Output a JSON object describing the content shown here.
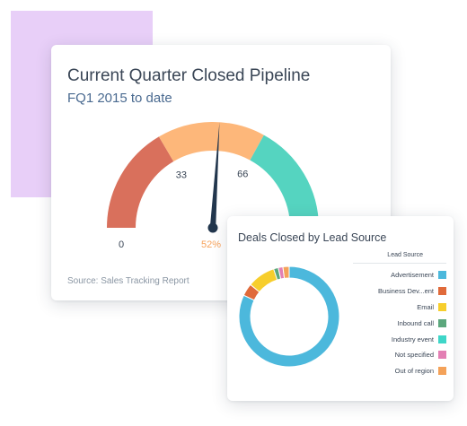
{
  "decor": {
    "accent_color": "#e8cff8"
  },
  "chart_data": [
    {
      "type": "gauge",
      "title": "Current Quarter Closed Pipeline",
      "subtitle": "FQ1 2015 to date",
      "source": "Source: Sales Tracking Report",
      "min": 0,
      "max": 100,
      "value": 52,
      "value_label": "52%",
      "min_label": "0",
      "bands": [
        {
          "from": 0,
          "to": 33,
          "color": "#d9705c"
        },
        {
          "from": 33,
          "to": 66,
          "color": "#fdb77a"
        },
        {
          "from": 66,
          "to": 100,
          "color": "#55d4c0"
        }
      ],
      "tick_labels": [
        {
          "value": 33,
          "label": "33"
        },
        {
          "value": 66,
          "label": "66"
        }
      ],
      "needle_color": "#22364d",
      "value_label_color": "#f7a35c"
    },
    {
      "type": "pie",
      "variant": "donut",
      "title": "Deals Closed by Lead Source",
      "legend_title": "Lead Source",
      "legend_position": "right",
      "slices": [
        {
          "label": "Advertisement",
          "value": 82,
          "color": "#4cb8dc"
        },
        {
          "label": "Business Dev...ent",
          "value": 4,
          "color": "#e06a3a"
        },
        {
          "label": "Email",
          "value": 9,
          "color": "#f7ce2c"
        },
        {
          "label": "Inbound call",
          "value": 1.5,
          "color": "#5ba77c"
        },
        {
          "label": "Industry event",
          "value": 0,
          "color": "#3ed6c8"
        },
        {
          "label": "Not specified",
          "value": 1.5,
          "color": "#e37fb4"
        },
        {
          "label": "Out of region",
          "value": 2,
          "color": "#f4a259"
        }
      ]
    }
  ]
}
